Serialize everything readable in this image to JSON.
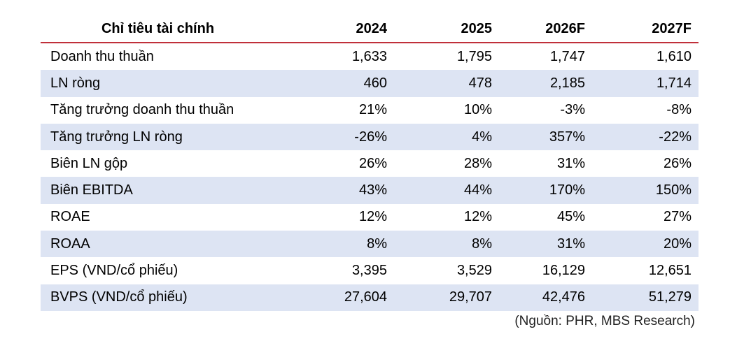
{
  "table": {
    "header": {
      "label": "Chỉ tiêu tài chính",
      "years": [
        "2024",
        "2025",
        "2026F",
        "2027F"
      ]
    },
    "rows": [
      {
        "label": "Doanh thu thuần",
        "values": [
          "1,633",
          "1,795",
          "1,747",
          "1,610"
        ],
        "shaded": false
      },
      {
        "label": "LN ròng",
        "values": [
          "460",
          "478",
          "2,185",
          "1,714"
        ],
        "shaded": true
      },
      {
        "label": "Tăng trưởng doanh thu thuần",
        "values": [
          "21%",
          "10%",
          "-3%",
          "-8%"
        ],
        "shaded": false
      },
      {
        "label": "Tăng trưởng LN ròng",
        "values": [
          "-26%",
          "4%",
          "357%",
          "-22%"
        ],
        "shaded": true
      },
      {
        "label": "Biên LN gộp",
        "values": [
          "26%",
          "28%",
          "31%",
          "26%"
        ],
        "shaded": false
      },
      {
        "label": "Biên EBITDA",
        "values": [
          "43%",
          "44%",
          "170%",
          "150%"
        ],
        "shaded": true
      },
      {
        "label": "ROAE",
        "values": [
          "12%",
          "12%",
          "45%",
          "27%"
        ],
        "shaded": false
      },
      {
        "label": "ROAA",
        "values": [
          "8%",
          "8%",
          "31%",
          "20%"
        ],
        "shaded": true
      },
      {
        "label": "EPS (VND/cổ phiếu)",
        "values": [
          "3,395",
          "3,529",
          "16,129",
          "12,651"
        ],
        "shaded": false
      },
      {
        "label": "BVPS (VND/cổ phiếu)",
        "values": [
          "27,604",
          "29,707",
          "42,476",
          "51,279"
        ],
        "shaded": true
      }
    ]
  },
  "source": "(Nguồn: PHR, MBS Research)",
  "colors": {
    "header_rule": "#c0303a",
    "row_shade": "#dde4f3"
  }
}
